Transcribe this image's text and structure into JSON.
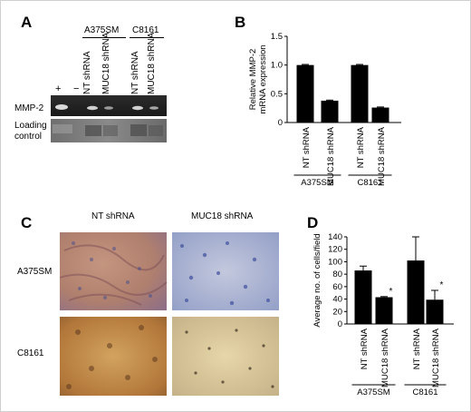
{
  "panelA": {
    "letter": "A",
    "lane_labels": [
      "+",
      "−"
    ],
    "groups": [
      {
        "name": "A375SM",
        "lanes": [
          "NT shRNA",
          "MUC18 shRNA"
        ]
      },
      {
        "name": "C8161",
        "lanes": [
          "NT shRNA",
          "MUC18 shRNA"
        ]
      }
    ],
    "row_labels": {
      "band": "MMP-2",
      "loading_line1": "Loading",
      "loading_line2": "control"
    }
  },
  "panelB": {
    "letter": "B"
  },
  "panelC": {
    "letter": "C",
    "col_labels": [
      "NT shRNA",
      "MUC18 shRNA"
    ],
    "row_labels": [
      "A375SM",
      "C8161"
    ]
  },
  "panelD": {
    "letter": "D"
  },
  "chart_data": [
    {
      "panel": "B",
      "type": "bar",
      "categories": [
        "NT shRNA",
        "MUC18 shRNA",
        "NT shRNA",
        "MUC18 shRNA"
      ],
      "groups": [
        "A375SM",
        "C8161"
      ],
      "values": [
        1.0,
        0.38,
        1.0,
        0.26
      ],
      "errors": [
        0.01,
        0.01,
        0.01,
        0.01
      ],
      "ylabel_line1": "Relative MMP-2",
      "ylabel_line2": "mRNA expression",
      "ylim": [
        0,
        1.5
      ],
      "yticks": [
        "0",
        "0.5",
        "1.0",
        "1.5"
      ],
      "color": "#000000"
    },
    {
      "panel": "D",
      "type": "bar",
      "categories": [
        "NT shRNA",
        "MUC18 shRNA",
        "NT shRNA",
        "MUC18 shRNA"
      ],
      "groups": [
        "A375SM",
        "C8161"
      ],
      "values": [
        86,
        43,
        102,
        39
      ],
      "errors": [
        7,
        1,
        38,
        15
      ],
      "significance": [
        "",
        "*",
        "",
        "*"
      ],
      "ylabel": "Average no. of cells/field",
      "ylim": [
        0,
        140
      ],
      "yticks": [
        "0",
        "20",
        "40",
        "60",
        "80",
        "100",
        "120",
        "140"
      ],
      "color": "#000000"
    }
  ]
}
